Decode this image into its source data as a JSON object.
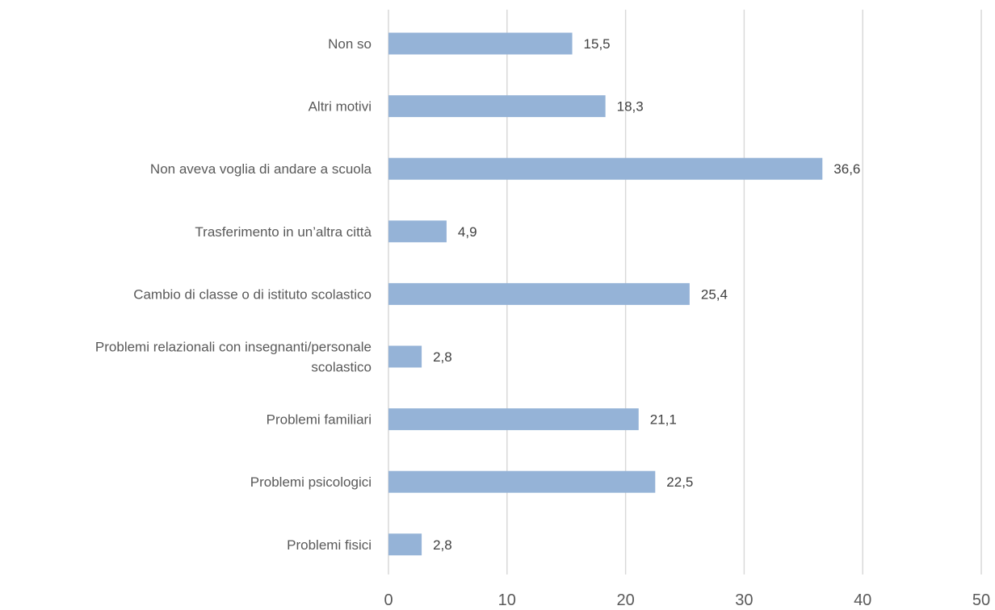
{
  "chart_data": {
    "type": "bar",
    "orientation": "horizontal",
    "categories": [
      "Non so",
      "Altri motivi",
      "Non aveva voglia di andare a scuola",
      "Trasferimento in un’altra città",
      "Cambio di classe o di istituto scolastico",
      "Problemi relazionali con insegnanti/personale scolastico",
      "Problemi familiari",
      "Problemi psicologici",
      "Problemi fisici"
    ],
    "values": [
      15.5,
      18.3,
      36.6,
      4.9,
      25.4,
      2.8,
      21.1,
      22.5,
      2.8
    ],
    "data_labels": [
      "15,5",
      "18,3",
      "36,6",
      "4,9",
      "25,4",
      "2,8",
      "21,1",
      "22,5",
      "2,8"
    ],
    "xlim": [
      0,
      50
    ],
    "xticks": [
      "0",
      "10",
      "20",
      "30",
      "40",
      "50"
    ],
    "grid": "vertical",
    "bar_color": "#95b3d7",
    "grid_color": "#d9d9d9"
  }
}
